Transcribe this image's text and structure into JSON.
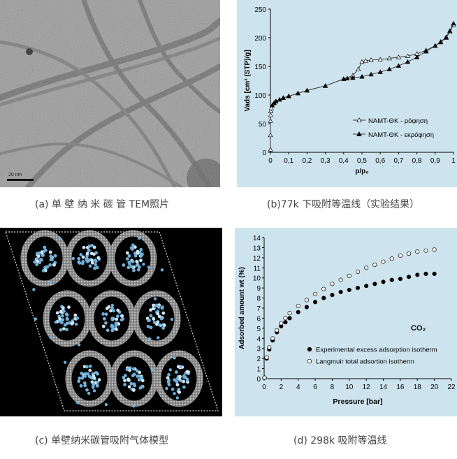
{
  "captions": {
    "a": "(a) 单 壁 纳 米 碳 管 TEM照片",
    "b": "(b)77k 下吸附等温线（实验结果）",
    "c": "(c) 单壁纳米碳管吸附气体模型",
    "d": "(d) 298k 吸附等温线"
  },
  "tem": {
    "scale_bar_label": "20 nm"
  },
  "chart_data": [
    {
      "type": "line",
      "xlabel": "p/p₀",
      "ylabel": "Vads [cm³ (STP)/g]",
      "xlim": [
        0,
        1
      ],
      "ylim": [
        0,
        250
      ],
      "xticks": [
        "0",
        "0,1",
        "0,2",
        "0,3",
        "0,4",
        "0,5",
        "0,6",
        "0,7",
        "0,8",
        "0,9",
        "1"
      ],
      "yticks": [
        "0",
        "50",
        "100",
        "150",
        "200",
        "250"
      ],
      "legend_position": "bottom-right",
      "series": [
        {
          "name": "NAMT-ΘΚ - ρόφηση",
          "marker": "open-triangle",
          "x": [
            0.0,
            0.0,
            0.0,
            0.001,
            0.002,
            0.005,
            0.01,
            0.02,
            0.03,
            0.05,
            0.07,
            0.1,
            0.15,
            0.2,
            0.3,
            0.4,
            0.45,
            0.48,
            0.5,
            0.52,
            0.55,
            0.6,
            0.65,
            0.7,
            0.75,
            0.8,
            0.85,
            0.9,
            0.93,
            0.96,
            0.98,
            1.0
          ],
          "y": [
            5,
            30,
            55,
            65,
            72,
            77,
            82,
            86,
            89,
            92,
            95,
            98,
            103,
            108,
            116,
            128,
            134,
            145,
            158,
            160,
            161,
            162,
            164,
            166,
            168,
            172,
            178,
            186,
            192,
            200,
            210,
            223
          ]
        },
        {
          "name": "NAMT-ΘΚ - εκρόφηση",
          "marker": "filled-triangle",
          "x": [
            1.0,
            0.98,
            0.96,
            0.93,
            0.9,
            0.85,
            0.8,
            0.75,
            0.7,
            0.65,
            0.6,
            0.55,
            0.5,
            0.45,
            0.42,
            0.4,
            0.3,
            0.2,
            0.15,
            0.1,
            0.07,
            0.05,
            0.03,
            0.02,
            0.01
          ],
          "y": [
            225,
            212,
            201,
            193,
            186,
            176,
            166,
            158,
            151,
            145,
            140,
            136,
            132,
            130,
            129,
            128,
            116,
            108,
            103,
            98,
            95,
            92,
            89,
            86,
            82
          ]
        }
      ]
    },
    {
      "type": "scatter",
      "xlabel": "Pressure [bar]",
      "ylabel": "Adsorbed amount wt (%)",
      "xlim": [
        0,
        22
      ],
      "ylim": [
        0,
        14
      ],
      "xticks": [
        "0",
        "2",
        "4",
        "6",
        "8",
        "10",
        "12",
        "14",
        "16",
        "18",
        "20",
        "22"
      ],
      "yticks": [
        "0",
        "1",
        "2",
        "3",
        "4",
        "5",
        "6",
        "7",
        "8",
        "9",
        "10",
        "11",
        "12",
        "13",
        "14"
      ],
      "annotation": "CO₂",
      "legend_position": "bottom-right",
      "series": [
        {
          "name": "Experimental excess adsorption isotherm",
          "marker": "filled-circle",
          "x": [
            0.05,
            0.3,
            0.6,
            1.0,
            1.5,
            2.0,
            2.5,
            3.0,
            4.0,
            5.0,
            6.0,
            7.0,
            8.0,
            9.0,
            10.0,
            11.0,
            12.0,
            13.0,
            14.0,
            15.0,
            16.0,
            17.0,
            18.0,
            19.0,
            20.0
          ],
          "y": [
            0.1,
            2.0,
            2.9,
            3.8,
            4.6,
            5.2,
            5.6,
            6.0,
            6.6,
            7.1,
            7.6,
            8.0,
            8.3,
            8.6,
            8.8,
            9.0,
            9.2,
            9.4,
            9.6,
            9.8,
            9.9,
            10.1,
            10.3,
            10.4,
            10.4
          ]
        },
        {
          "name": "Langmuir total adsortion isotherm",
          "marker": "open-circle",
          "x": [
            0.05,
            0.3,
            0.6,
            1.0,
            1.5,
            2.0,
            2.5,
            3.0,
            4.0,
            5.0,
            6.0,
            7.0,
            8.0,
            9.0,
            10.0,
            11.0,
            12.0,
            13.0,
            14.0,
            15.0,
            16.0,
            17.0,
            18.0,
            19.0,
            20.0
          ],
          "y": [
            0.1,
            2.1,
            3.1,
            4.0,
            4.8,
            5.5,
            6.0,
            6.5,
            7.2,
            7.8,
            8.4,
            8.9,
            9.4,
            9.8,
            10.2,
            10.6,
            11.0,
            11.3,
            11.6,
            11.9,
            12.2,
            12.4,
            12.6,
            12.7,
            12.8
          ]
        }
      ]
    }
  ]
}
